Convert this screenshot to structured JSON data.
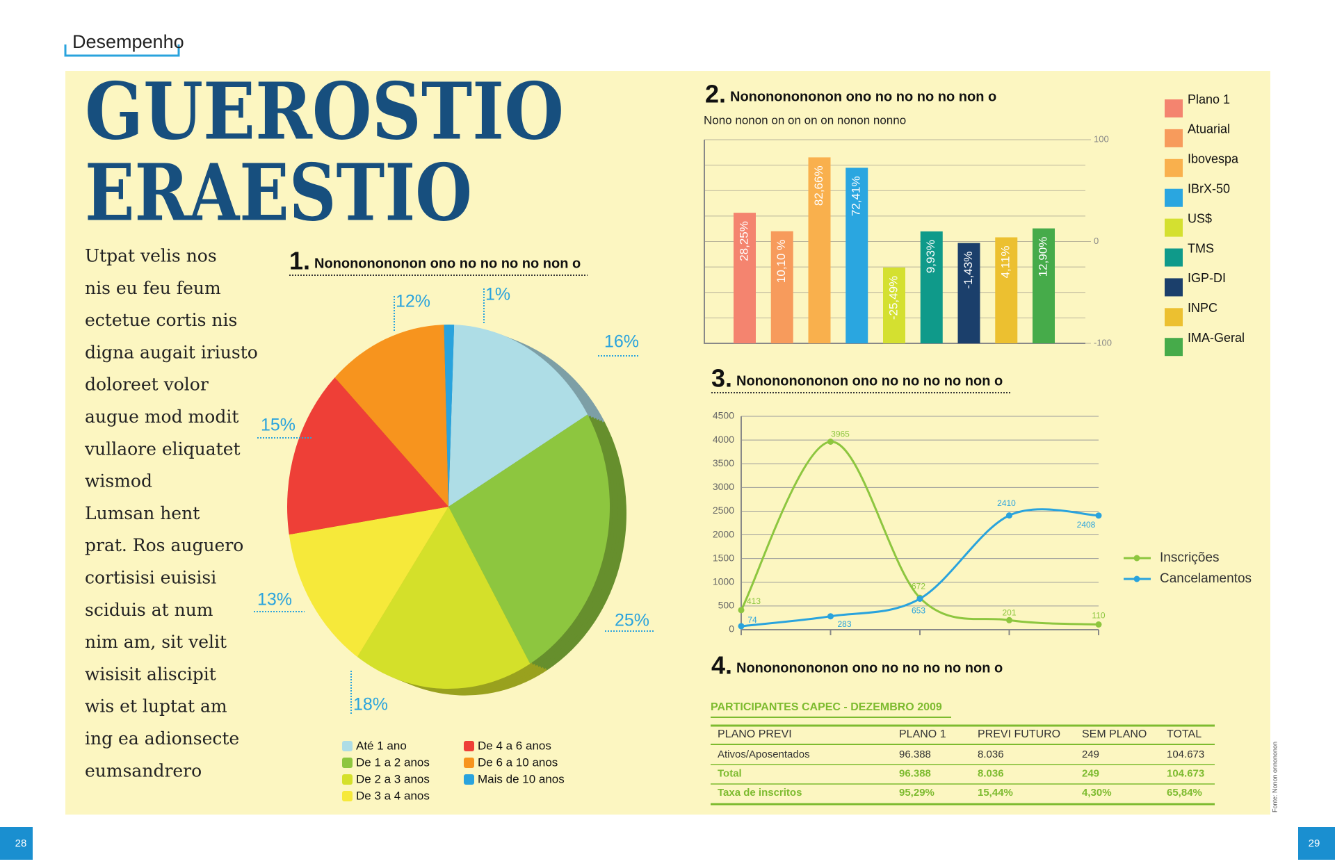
{
  "header": {
    "section": "Desempenho",
    "title": [
      "GUEROSTIO",
      "ERAESTIO"
    ],
    "body": [
      "Utpat velis nos",
      "nis eu feu feum",
      "ectetue cortis nis",
      "digna augait iriusto",
      "doloreet volor",
      "augue mod modit",
      "vullaore eliquatet",
      "wismod",
      "Lumsan hent",
      "prat. Ros auguero",
      "cortisisi euisisi",
      "sciduis at num",
      "nim am, sit velit",
      "wisisit aliscipit",
      "wis et luptat am",
      "ing ea adionsecte",
      "eumsandrero"
    ]
  },
  "chart_data": [
    {
      "type": "pie",
      "number": "1.",
      "title": "Nonononononon ono no no no no non o",
      "categories": [
        "Até 1 ano",
        "De 1 a 2 anos",
        "De 2 a 3 anos",
        "De 3 a 4 anos",
        "De 4 a 6 anos",
        "De 6 a 10 anos",
        "Mais de 10 anos"
      ],
      "values": [
        16,
        25,
        18,
        13,
        15,
        12,
        1
      ],
      "value_labels": [
        "16%",
        "25%",
        "18%",
        "13%",
        "15%",
        "12%",
        "1%"
      ],
      "colors": [
        "#aedde6",
        "#8dc63f",
        "#d4e02a",
        "#f6e93a",
        "#ee3f37",
        "#f7941e",
        "#29a3dd"
      ]
    },
    {
      "type": "bar",
      "number": "2.",
      "title": "Nonononononon ono no no no no non o",
      "subtitle": "Nono nonon on on on on nonon nonno",
      "categories": [
        "Plano 1",
        "Atuarial",
        "Ibovespa",
        "IBrX-50",
        "US$",
        "TMS",
        "IGP-DI",
        "INPC",
        "IMA-Geral"
      ],
      "values": [
        28.25,
        10.1,
        82.66,
        72.41,
        -25.49,
        9.93,
        -1.43,
        4.11,
        12.9
      ],
      "value_labels": [
        "28,25%",
        "10,10 %",
        "82,66%",
        "72,41%",
        "-25,49%",
        "9,93%",
        "-1,43%",
        "4,11%",
        "12,90%"
      ],
      "colors": [
        "#f4846f",
        "#f79b5c",
        "#f9b04d",
        "#2aa6e0",
        "#d4e030",
        "#0f9a8a",
        "#1b3f6b",
        "#ecc030",
        "#46ab4a"
      ],
      "ylim": [
        -100,
        100
      ],
      "yticks": [
        -100,
        0,
        100
      ],
      "yminor": [
        -75,
        -50,
        -25,
        25,
        50,
        75
      ],
      "grid": true
    },
    {
      "type": "line",
      "number": "3.",
      "title": "Nonononononon ono no no no no non o",
      "categories": [
        null,
        null,
        null,
        null,
        null
      ],
      "series": [
        {
          "name": "Inscrições",
          "color": "#8dc63f",
          "values": [
            413,
            3965,
            672,
            201,
            110
          ]
        },
        {
          "name": "Cancelamentos",
          "color": "#29a3dd",
          "values": [
            74,
            283,
            653,
            2410,
            2408
          ]
        }
      ],
      "ylim": [
        0,
        4500
      ],
      "yticks": [
        0,
        500,
        1000,
        1500,
        2000,
        2500,
        3000,
        3500,
        4000,
        4500
      ],
      "grid": true
    }
  ],
  "table": {
    "number": "4.",
    "title": "Nonononononon ono no no no no non o",
    "caption": "PARTICIPANTES CAPEC - DEZEMBRO 2009",
    "header": [
      "PLANO PREVI",
      "PLANO 1",
      "PREVI FUTURO",
      "SEM PLANO",
      "TOTAL"
    ],
    "rows": [
      [
        "Ativos/Aposentados",
        "96.388",
        "8.036",
        "249",
        "104.673"
      ],
      [
        "Total",
        "96.388",
        "8.036",
        "249",
        "104.673"
      ],
      [
        "Taxa de inscritos",
        "95,29%",
        "15,44%",
        "4,30%",
        "65,84%"
      ]
    ]
  },
  "pages": [
    "28",
    "29"
  ],
  "source": "Fonte: Nonon onnononon"
}
